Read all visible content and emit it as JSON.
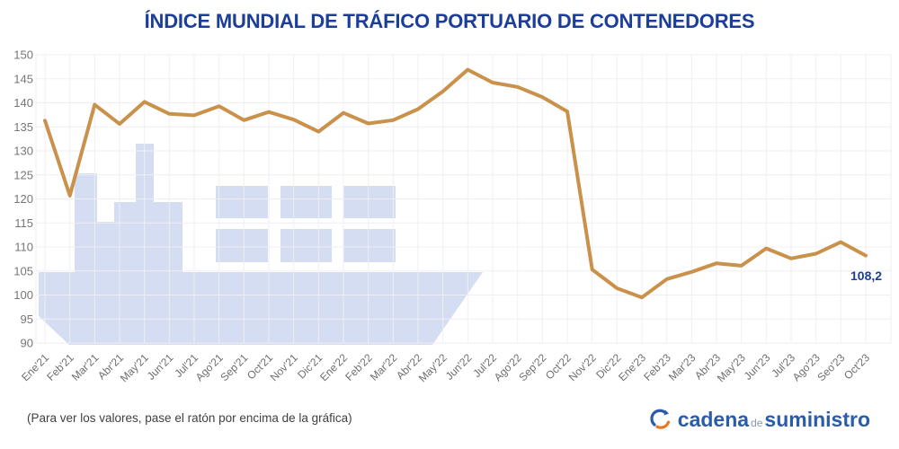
{
  "title": "ÍNDICE MUNDIAL DE TRÁFICO PORTUARIO DE CONTENEDORES",
  "footer": {
    "note": "(Para ver los valores, pase el ratón por encima de la gráfica)",
    "logo": {
      "word1": "cadena",
      "word2": "de",
      "word3": "suministro"
    }
  },
  "chart_data": {
    "type": "line",
    "title": "ÍNDICE MUNDIAL DE TRÁFICO PORTUARIO DE CONTENEDORES",
    "categories": [
      "Ene'21",
      "Feb'21",
      "Mar'21",
      "Abr'21",
      "May'21",
      "Jun'21",
      "Jul'21",
      "Ago'21",
      "Sep'21",
      "Oct'21",
      "Nov'21",
      "Dic'21",
      "Ene'22",
      "Feb'22",
      "Mar'22",
      "Abr'22",
      "May'22",
      "Jun'22",
      "Jul'22",
      "Ago'22",
      "Sep'22",
      "Oct'22",
      "Nov'22",
      "Dic'22",
      "Ene'23",
      "Feb'23",
      "Mar'23",
      "Abr'23",
      "May'23",
      "Jun'23",
      "Jul'23",
      "Ago'23",
      "Seo'23",
      "Oct'23"
    ],
    "values": [
      136.3,
      120.7,
      139.6,
      135.6,
      140.2,
      137.7,
      137.4,
      139.3,
      136.4,
      138.1,
      136.5,
      134.0,
      137.9,
      135.7,
      136.4,
      138.7,
      142.4,
      146.9,
      144.2,
      143.3,
      141.2,
      138.2,
      105.3,
      101.4,
      99.5,
      103.3,
      104.8,
      106.6,
      106.1,
      109.7,
      107.6,
      108.6,
      111.0,
      108.2
    ],
    "ylim": [
      90,
      150
    ],
    "y_ticks": [
      150,
      145,
      140,
      135,
      130,
      125,
      120,
      115,
      110,
      105,
      100,
      95,
      90
    ],
    "grid": true,
    "legend": false,
    "xlabel": "",
    "ylabel": "",
    "line_color": "#C9914A",
    "title_color": "#1c3e99",
    "watermark": "container-ship",
    "watermark_color": "#d4ddf2",
    "last_value_label": "108,2"
  }
}
